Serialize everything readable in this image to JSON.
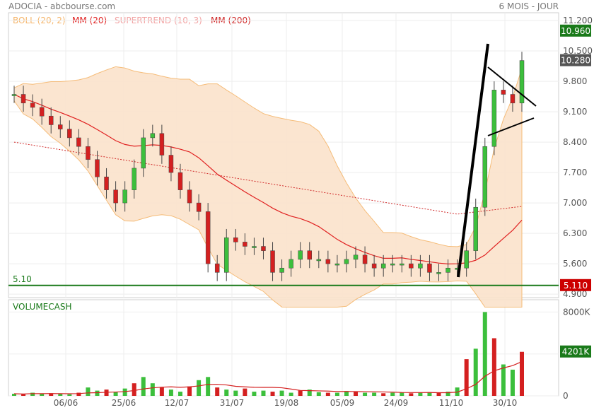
{
  "header": {
    "title": "ADOCIA - abcbourse.com",
    "period": "6 MOIS - JOUR"
  },
  "legend": [
    {
      "label": "BOLL (20, 2)",
      "color": "#f5b56a"
    },
    {
      "label": "MM (20)",
      "color": "#e02020"
    },
    {
      "label": "SUPERTREND (10, 3)",
      "color": "#f2a3a3"
    },
    {
      "label": "MM (200)",
      "color": "#d02a2a"
    }
  ],
  "badges": {
    "high": "10.960",
    "close": "10.280",
    "support": "5.110",
    "support_left": "5.10",
    "volume": "4201K"
  },
  "volume_label": "VOLUMECASH",
  "chart_data": [
    {
      "type": "candlestick",
      "yticks": [
        "11.200",
        "10.500",
        "9.800",
        "9.100",
        "8.400",
        "7.700",
        "7.000",
        "6.300",
        "5.600",
        "4.900"
      ],
      "ylim": [
        4.82,
        11.38
      ],
      "xticks": [
        "06/06",
        "25/06",
        "12/07",
        "31/07",
        "19/08",
        "05/09",
        "24/09",
        "11/10",
        "30/10"
      ],
      "support_level": 5.1,
      "annotations": [
        "trend line",
        "triangle"
      ],
      "series_close_estimate": [
        9.5,
        9.3,
        9.2,
        9.0,
        8.8,
        8.7,
        8.5,
        8.3,
        8.0,
        7.6,
        7.3,
        7.0,
        7.3,
        7.8,
        8.5,
        8.6,
        8.1,
        7.7,
        7.3,
        7.0,
        6.8,
        5.6,
        5.4,
        6.2,
        6.1,
        6.0,
        6.0,
        5.9,
        5.4,
        5.5,
        5.7,
        5.9,
        5.7,
        5.7,
        5.6,
        5.6,
        5.7,
        5.8,
        5.6,
        5.5,
        5.6,
        5.6,
        5.6,
        5.5,
        5.6,
        5.4,
        5.4,
        5.5,
        5.5,
        5.9,
        6.9,
        8.3,
        9.6,
        9.5,
        9.3,
        10.28
      ]
    },
    {
      "type": "bar",
      "name": "VOLUMECASH",
      "yticks": [
        "8000K",
        "4000K",
        "0"
      ],
      "ylim": [
        0,
        8500
      ],
      "values": [
        200,
        150,
        300,
        200,
        250,
        180,
        150,
        300,
        800,
        500,
        600,
        400,
        700,
        1200,
        1800,
        1200,
        800,
        600,
        400,
        900,
        1500,
        1800,
        800,
        600,
        500,
        700,
        400,
        500,
        400,
        500,
        300,
        500,
        600,
        350,
        300,
        300,
        450,
        400,
        300,
        300,
        250,
        300,
        300,
        250,
        300,
        350,
        300,
        400,
        800,
        3500,
        4500,
        8000,
        5500,
        3000,
        2500,
        4201
      ]
    }
  ]
}
